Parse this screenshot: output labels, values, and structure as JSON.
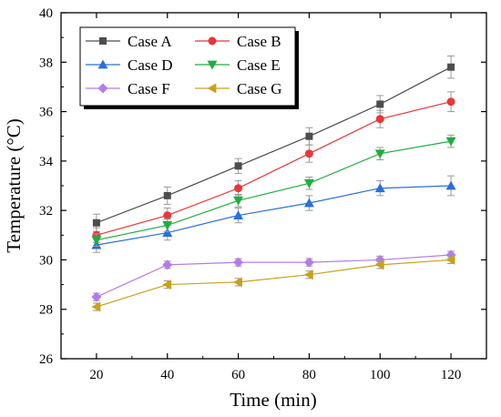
{
  "chart_data": {
    "type": "line",
    "xlabel": "Time (min)",
    "ylabel": "Temperature (°C)",
    "xlim": [
      10,
      130
    ],
    "ylim": [
      26,
      40
    ],
    "x": [
      20,
      40,
      60,
      80,
      100,
      120
    ],
    "xticks": [
      20,
      40,
      60,
      80,
      100,
      120
    ],
    "yticks": [
      26,
      28,
      30,
      32,
      34,
      36,
      38,
      40
    ],
    "legend_position": "top-left",
    "series": [
      {
        "name": "Case A",
        "color": "#4d4d4d",
        "marker": "square",
        "values": [
          31.5,
          32.6,
          33.8,
          35.0,
          36.3,
          37.8
        ],
        "errors": [
          0.35,
          0.35,
          0.3,
          0.35,
          0.35,
          0.45
        ]
      },
      {
        "name": "Case B",
        "color": "#e8373a",
        "marker": "circle",
        "values": [
          31.0,
          31.8,
          32.9,
          34.3,
          35.7,
          36.4
        ],
        "errors": [
          0.3,
          0.3,
          0.3,
          0.35,
          0.35,
          0.4
        ]
      },
      {
        "name": "Case D",
        "color": "#2a6fdb",
        "marker": "triangle-up",
        "values": [
          30.6,
          31.1,
          31.8,
          32.3,
          32.9,
          33.0
        ],
        "errors": [
          0.3,
          0.3,
          0.3,
          0.3,
          0.3,
          0.4
        ]
      },
      {
        "name": "Case E",
        "color": "#1fae3f",
        "marker": "triangle-down",
        "values": [
          30.8,
          31.4,
          32.4,
          33.1,
          34.3,
          34.8
        ],
        "errors": [
          0.25,
          0.25,
          0.25,
          0.25,
          0.25,
          0.25
        ]
      },
      {
        "name": "Case F",
        "color": "#b57ce8",
        "marker": "diamond",
        "values": [
          28.5,
          29.8,
          29.9,
          29.9,
          30.0,
          30.2
        ],
        "errors": [
          0.15,
          0.15,
          0.15,
          0.15,
          0.15,
          0.15
        ]
      },
      {
        "name": "Case G",
        "color": "#c9a21b",
        "marker": "triangle-left",
        "values": [
          28.1,
          29.0,
          29.1,
          29.4,
          29.8,
          30.0
        ],
        "errors": [
          0.15,
          0.15,
          0.15,
          0.15,
          0.15,
          0.15
        ]
      }
    ]
  }
}
